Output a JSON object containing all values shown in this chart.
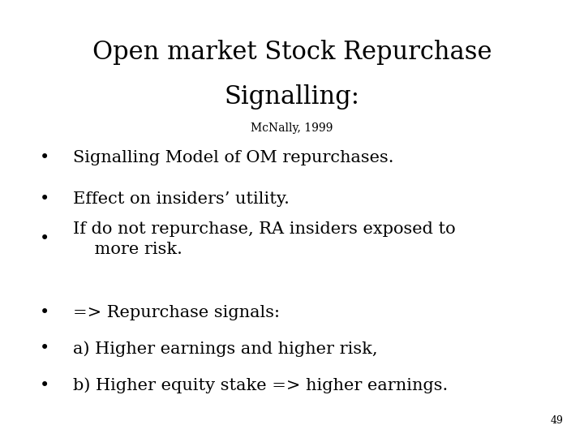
{
  "title_line1": "Open market Stock Repurchase",
  "title_line2": "Signalling:",
  "subtitle": "McNally, 1999",
  "bullet_points": [
    "Signalling Model of OM repurchases.",
    "Effect on insiders’ utility.",
    "If do not repurchase, RA insiders exposed to\n    more risk.",
    "=> Repurchase signals:",
    "a) Higher earnings and higher risk,",
    "b) Higher equity stake => higher earnings."
  ],
  "page_number": "49",
  "bg_color": "#ffffff",
  "text_color": "#000000",
  "title_fontsize": 22,
  "subtitle_fontsize": 10,
  "bullet_fontsize": 15,
  "page_fontsize": 9
}
